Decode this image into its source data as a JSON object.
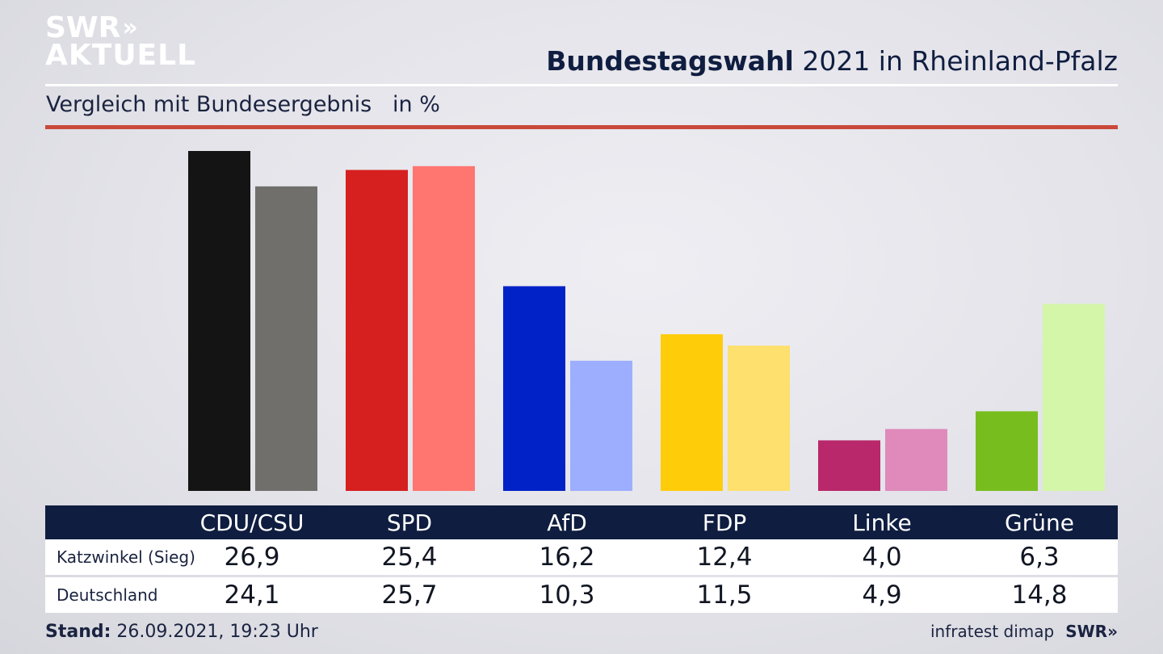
{
  "logo": {
    "line1": "SWR",
    "arrows": "»",
    "line2": "AKTUELL"
  },
  "header": {
    "title_bold": "Bundestagswahl",
    "title_rest": " 2021 in Rheinland-Pfalz",
    "subtitle": "Vergleich mit Bundesergebnis   in %"
  },
  "chart_data": {
    "type": "bar",
    "categories": [
      "CDU/CSU",
      "SPD",
      "AfD",
      "FDP",
      "Linke",
      "Grüne"
    ],
    "series": [
      {
        "name": "Katzwinkel (Sieg)",
        "values": [
          26.9,
          25.4,
          16.2,
          12.4,
          4.0,
          6.3
        ]
      },
      {
        "name": "Deutschland",
        "values": [
          24.1,
          25.7,
          10.3,
          11.5,
          4.9,
          14.8
        ]
      }
    ],
    "colors": {
      "Katzwinkel (Sieg)": [
        "#141414",
        "#d61f1f",
        "#0022c6",
        "#ffcc0a",
        "#b8286a",
        "#78bd1e"
      ],
      "Deutschland": [
        "#716f6c",
        "#ff7570",
        "#9daeff",
        "#fde06d",
        "#df8abb",
        "#d4f6a8"
      ]
    },
    "ylim": [
      0,
      27
    ]
  },
  "table": {
    "headers": [
      "CDU/CSU",
      "SPD",
      "AfD",
      "FDP",
      "Linke",
      "Grüne"
    ],
    "rows": [
      {
        "label": "Katzwinkel (Sieg)",
        "values": [
          "26,9",
          "25,4",
          "16,2",
          "12,4",
          "4,0",
          "6,3"
        ]
      },
      {
        "label": "Deutschland",
        "values": [
          "24,1",
          "25,7",
          "10,3",
          "11,5",
          "4,9",
          "14,8"
        ]
      }
    ]
  },
  "footer": {
    "stand_label": "Stand:",
    "stand_value": " 26.09.2021, 19:23 Uhr",
    "source": "infratest dimap",
    "brand": "SWR»"
  }
}
